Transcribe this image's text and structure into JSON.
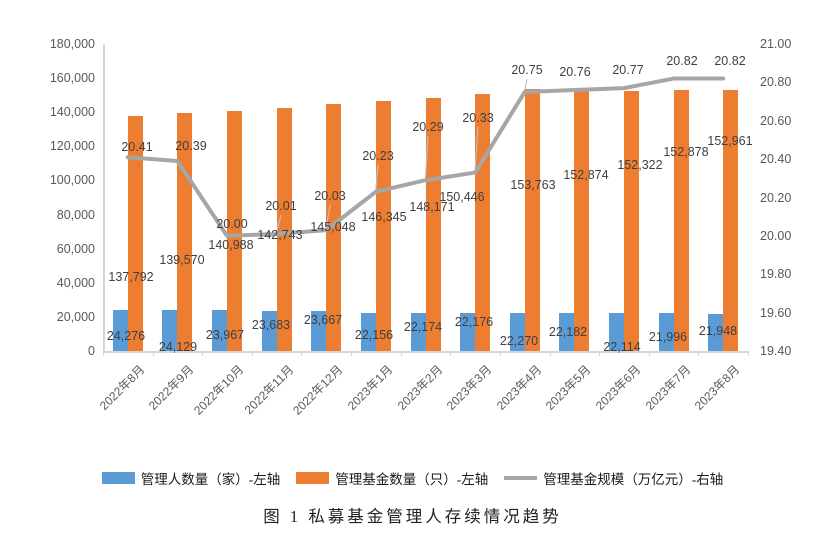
{
  "figure": {
    "caption": "图 1 私募基金管理人存续情况趋势"
  },
  "chart_data": {
    "type": "combo-bar-line",
    "title": "",
    "categories": [
      "2022年8月",
      "2022年9月",
      "2022年10月",
      "2022年11月",
      "2022年12月",
      "2023年1月",
      "2023年2月",
      "2023年3月",
      "2023年4月",
      "2023年5月",
      "2023年6月",
      "2023年7月",
      "2023年8月"
    ],
    "series": [
      {
        "name": "管理人数量（家）-左轴",
        "type": "bar",
        "axis": "left",
        "color": "#5B9BD5",
        "values": [
          24276,
          24129,
          23967,
          23683,
          23667,
          22156,
          22174,
          22176,
          22270,
          22182,
          22114,
          21996,
          21948
        ],
        "labels": [
          "24,276",
          "24,129",
          "23,967",
          "23,683",
          "23,667",
          "22,156",
          "22,174",
          "22,176",
          "22,270",
          "22,182",
          "22,114",
          "21,996",
          "21,948"
        ]
      },
      {
        "name": "管理基金数量（只）-左轴",
        "type": "bar",
        "axis": "left",
        "color": "#ED7D31",
        "values": [
          137792,
          139570,
          140988,
          142743,
          145048,
          146345,
          148171,
          150446,
          153763,
          152874,
          152322,
          152878,
          152961
        ],
        "labels": [
          "137,792",
          "139,570",
          "140,988",
          "142,743",
          "145,048",
          "146,345",
          "148,171",
          "150,446",
          "153,763",
          "152,874",
          "152,322",
          "152,878",
          "152,961"
        ]
      },
      {
        "name": "管理基金规模（万亿元）-右轴",
        "type": "line",
        "axis": "right",
        "color": "#A6A6A6",
        "values": [
          20.41,
          20.39,
          20.0,
          20.01,
          20.03,
          20.23,
          20.29,
          20.33,
          20.75,
          20.76,
          20.77,
          20.82,
          20.82
        ],
        "labels": [
          "20.41",
          "20.39",
          "20.00",
          "20.01",
          "20.03",
          "20.23",
          "20.29",
          "20.33",
          "20.75",
          "20.76",
          "20.77",
          "20.82",
          "20.82"
        ]
      }
    ],
    "left_axis": {
      "min": 0,
      "max": 180000,
      "step": 20000,
      "tick_labels": [
        "180,000",
        "160,000",
        "140,000",
        "120,000",
        "100,000",
        "80,000",
        "60,000",
        "40,000",
        "20,000",
        "0"
      ]
    },
    "right_axis": {
      "min": 19.4,
      "max": 21.0,
      "step": 0.2,
      "tick_labels": [
        "21.00",
        "20.80",
        "20.60",
        "20.40",
        "20.20",
        "20.00",
        "19.80",
        "19.60",
        "19.40"
      ]
    },
    "grid": false,
    "legend_position": "bottom"
  }
}
